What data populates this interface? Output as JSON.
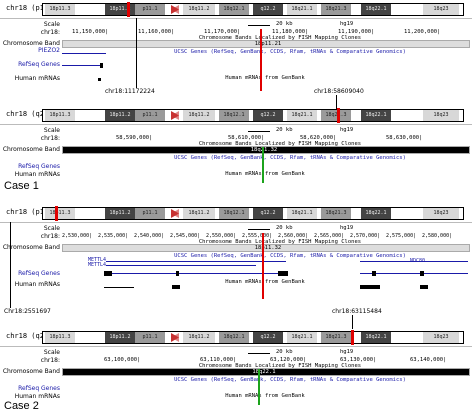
{
  "colors": {
    "red_marker": "#e00000",
    "green_marker": "#1ca31c",
    "gene_blue": "#1a1aa8"
  },
  "common": {
    "row_scale": "Scale",
    "row_chr": "chr18:",
    "row_chrom_band": "Chromosome Band",
    "row_refseq": "RefSeq Genes",
    "row_mrna": "Human mRNAs",
    "band_title": "Chromosome Bands Localized by FISH Mapping Clones",
    "ucsc_text": "UCSC Genes (RefSeq, GenBank, CCDS, Rfam, tRNAs & Comparative Genomics)",
    "mrna_text": "Human mRNAs from GenBank",
    "kb_label": "20 kb",
    "assembly": "hg19"
  },
  "panels": [
    {
      "chr_label": "chr18 (p11.21)",
      "band_name": "18p11.21",
      "extra_gene": "PIEZO2",
      "ticks": [
        "11,150,000|",
        "11,160,000|",
        "11,170,000|",
        "11,180,000|",
        "11,190,000|",
        "11,200,000|"
      ]
    },
    {
      "chr_label": "chr18 (q21.32)",
      "band_name": "18q21.32",
      "ticks": [
        "58,590,000|",
        "58,610,000|",
        "58,620,000|",
        "58,630,000|"
      ]
    },
    {
      "chr_label": "chr18 (p11.32)",
      "band_name": "18p11.32",
      "gene_a": "METTL4",
      "gene_b": "METTL4",
      "gene_c": "NDC80",
      "ticks": [
        "2,530,000|",
        "2,535,000|",
        "2,540,000|",
        "2,545,000|",
        "2,550,000|",
        "2,555,000|",
        "2,560,000|",
        "2,565,000|",
        "2,570,000|",
        "2,575,000|",
        "2,580,000|"
      ]
    },
    {
      "chr_label": "chr18 (q22.1)",
      "band_name": "18q22.1",
      "ticks": [
        "63,100,000|",
        "63,110,000|",
        "63,120,000|",
        "63,130,000|",
        "63,140,000|"
      ]
    }
  ],
  "callouts": {
    "c1_left": "chr18:11172224",
    "c1_right": "chr18:58609040",
    "c2_left": "Chr18:2551697",
    "c2_right": "chr18:63115484"
  },
  "cases": {
    "case1": "Case 1",
    "case2": "Case 2"
  },
  "bands": [
    "18p11.3",
    "18p11.2",
    "p11.1",
    "18q11.2",
    "18q12.1",
    "q12.2",
    "18q21.1",
    "18q21.3",
    "18q22.1",
    "18q23"
  ]
}
